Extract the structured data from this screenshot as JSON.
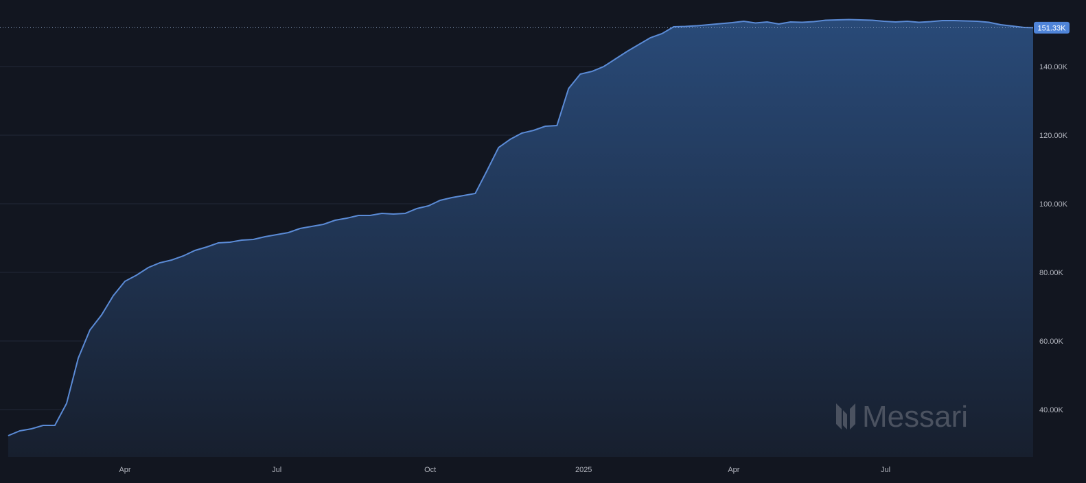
{
  "chart_data": {
    "type": "area",
    "title": "",
    "xlabel": "",
    "ylabel": "",
    "ylim": [
      27000,
      160000
    ],
    "grid": true,
    "y_axis_position": "right",
    "y_ticks": [
      40000,
      60000,
      80000,
      100000,
      120000,
      140000
    ],
    "y_tick_labels": [
      "40.00K",
      "60.00K",
      "80.00K",
      "100.00K",
      "120.00K",
      "140.00K"
    ],
    "x_ticks": [
      "2024-04-01",
      "2024-07-01",
      "2024-10-01",
      "2025-01-01",
      "2025-04-01",
      "2025-07-01"
    ],
    "x_tick_labels": [
      "Apr",
      "Jul",
      "Oct",
      "2025",
      "Apr",
      "Jul"
    ],
    "last_value_label": "151.33K",
    "colors": {
      "line": "#5b8bd6",
      "fill_top": "#294a78",
      "fill_bottom": "#171f2e",
      "background": "#121620",
      "last_label_bg": "#4f84d8"
    },
    "x": [
      "2024-01-22",
      "2024-01-29",
      "2024-02-05",
      "2024-02-12",
      "2024-02-19",
      "2024-02-26",
      "2024-03-04",
      "2024-03-11",
      "2024-03-18",
      "2024-03-25",
      "2024-04-01",
      "2024-04-08",
      "2024-04-15",
      "2024-04-22",
      "2024-04-29",
      "2024-05-06",
      "2024-05-13",
      "2024-05-20",
      "2024-05-27",
      "2024-06-03",
      "2024-06-10",
      "2024-06-17",
      "2024-06-24",
      "2024-07-01",
      "2024-07-08",
      "2024-07-15",
      "2024-07-22",
      "2024-07-29",
      "2024-08-05",
      "2024-08-12",
      "2024-08-19",
      "2024-08-26",
      "2024-09-02",
      "2024-09-09",
      "2024-09-16",
      "2024-09-23",
      "2024-09-30",
      "2024-10-07",
      "2024-10-14",
      "2024-10-21",
      "2024-10-28",
      "2024-11-04",
      "2024-11-11",
      "2024-11-18",
      "2024-11-25",
      "2024-12-02",
      "2024-12-09",
      "2024-12-16",
      "2024-12-23",
      "2024-12-30",
      "2025-01-06",
      "2025-01-13",
      "2025-01-20",
      "2025-01-27",
      "2025-02-03",
      "2025-02-10",
      "2025-02-17",
      "2025-02-24",
      "2025-03-03",
      "2025-03-10",
      "2025-03-17",
      "2025-03-24",
      "2025-03-31",
      "2025-04-07",
      "2025-04-14",
      "2025-04-21",
      "2025-04-28",
      "2025-05-05",
      "2025-05-12",
      "2025-05-19",
      "2025-05-26",
      "2025-06-02",
      "2025-06-09",
      "2025-06-16",
      "2025-06-23",
      "2025-06-30",
      "2025-07-07",
      "2025-07-14",
      "2025-07-21",
      "2025-07-28",
      "2025-08-04",
      "2025-08-11",
      "2025-08-18",
      "2025-08-25",
      "2025-09-01",
      "2025-09-08",
      "2025-09-15",
      "2025-09-22",
      "2025-09-29"
    ],
    "values": [
      32400,
      33800,
      34400,
      35400,
      35400,
      41800,
      55000,
      63200,
      67600,
      73200,
      77400,
      79200,
      81400,
      82800,
      83600,
      84800,
      86400,
      87400,
      88600,
      88800,
      89400,
      89600,
      90400,
      91000,
      91600,
      92800,
      93400,
      94000,
      95200,
      95800,
      96600,
      96600,
      97200,
      97000,
      97200,
      98600,
      99400,
      101000,
      101800,
      102400,
      103000,
      109600,
      116400,
      118800,
      120600,
      121400,
      122600,
      122800,
      133600,
      137800,
      138600,
      140000,
      142200,
      144400,
      146400,
      148400,
      149600,
      151600,
      151700,
      151900,
      152200,
      152500,
      152800,
      153200,
      152700,
      153000,
      152400,
      153000,
      152900,
      153100,
      153500,
      153600,
      153700,
      153600,
      153500,
      153200,
      153000,
      153200,
      152900,
      153100,
      153400,
      153400,
      153300,
      153200,
      152900,
      152200,
      151800,
      151400,
      151330
    ]
  },
  "watermark": "Messari"
}
